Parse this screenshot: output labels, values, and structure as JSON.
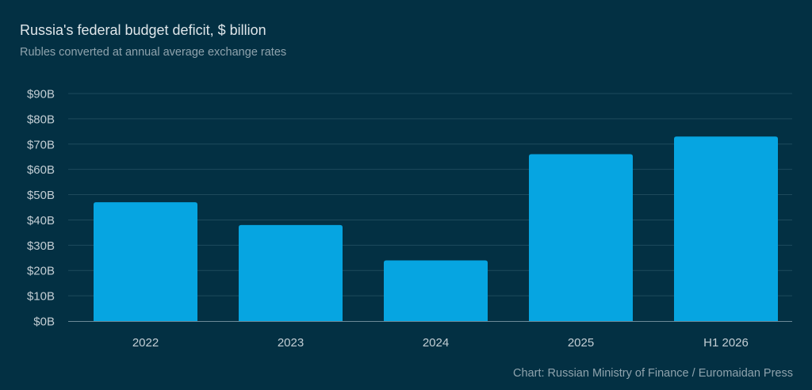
{
  "chart_data": {
    "type": "bar",
    "title": "Russia's federal budget deficit, $ billion",
    "subtitle": "Rubles converted at annual average exchange rates",
    "source": "Chart: Russian Ministry of Finance / Euromaidan Press",
    "categories": [
      "2022",
      "2023",
      "2024",
      "2025",
      "H1 2026"
    ],
    "values": [
      47,
      38,
      24,
      66,
      73
    ],
    "ylim": [
      0,
      90
    ],
    "yticks": [
      0,
      10,
      20,
      30,
      40,
      50,
      60,
      70,
      80,
      90
    ],
    "ytick_labels": [
      "$0B",
      "$10B",
      "$20B",
      "$30B",
      "$40B",
      "$50B",
      "$60B",
      "$70B",
      "$80B",
      "$90B"
    ],
    "grid": true,
    "colors": {
      "background": "#033043",
      "bar": "#06a5e1",
      "grid": "#1e4a5c",
      "axis": "#6c8a98",
      "text": "#dfe6ea",
      "muted": "#8fa3ad",
      "tick": "#c3ced4"
    }
  }
}
